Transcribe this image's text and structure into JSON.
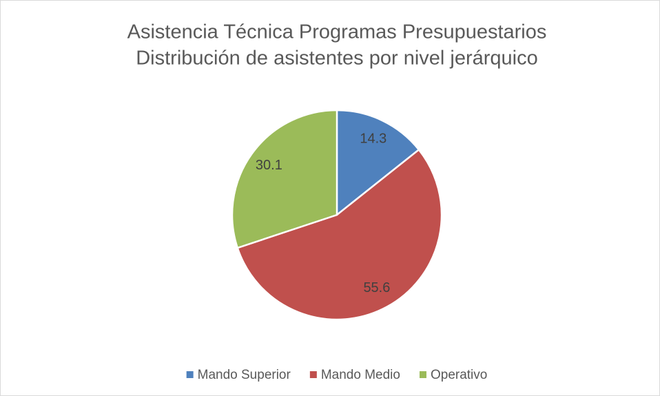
{
  "chart_data": {
    "type": "pie",
    "title": "Asistencia Técnica Programas Presupuestarios",
    "subtitle": "Distribución de asistentes por nivel jerárquico",
    "categories": [
      "Mando Superior",
      "Mando Medio",
      "Operativo"
    ],
    "values": [
      14.3,
      55.6,
      30.1
    ],
    "colors": [
      "#4f81bd",
      "#c0504d",
      "#9bbb59"
    ],
    "legend": "bottom"
  }
}
